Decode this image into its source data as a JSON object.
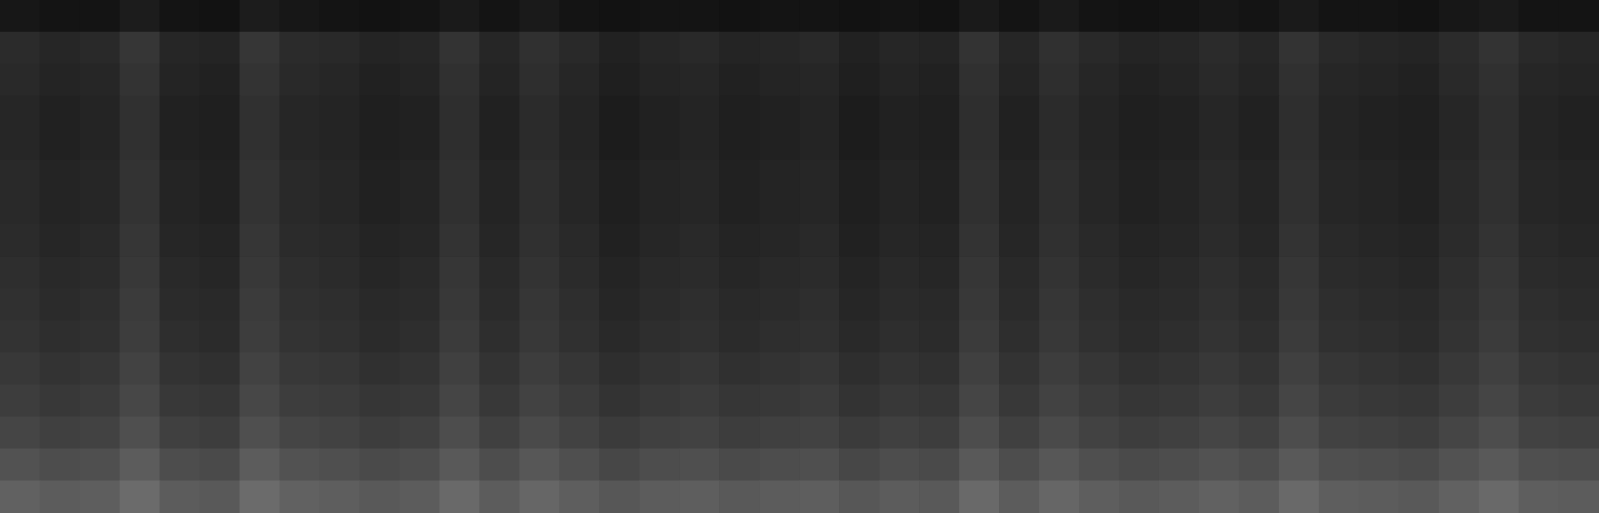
{
  "chart_data": {
    "type": "heatmap",
    "tick_labels": false,
    "grid": false,
    "color_range": [
      0,
      1
    ],
    "cells": [
      [
        0.09,
        0.08,
        0.08,
        0.11,
        0.08,
        0.07,
        0.11,
        0.09,
        0.08,
        0.07,
        0.08,
        0.1,
        0.08,
        0.1,
        0.08,
        0.07,
        0.08,
        0.08,
        0.07,
        0.08,
        0.08,
        0.07,
        0.08,
        0.07,
        0.1,
        0.08,
        0.1,
        0.08,
        0.07,
        0.08,
        0.09,
        0.08,
        0.1,
        0.08,
        0.08,
        0.07,
        0.09,
        0.1,
        0.08,
        0.08
      ],
      [
        0.17,
        0.15,
        0.16,
        0.21,
        0.15,
        0.14,
        0.21,
        0.17,
        0.16,
        0.14,
        0.15,
        0.2,
        0.15,
        0.19,
        0.16,
        0.13,
        0.15,
        0.16,
        0.14,
        0.15,
        0.16,
        0.13,
        0.15,
        0.14,
        0.2,
        0.15,
        0.19,
        0.16,
        0.14,
        0.15,
        0.17,
        0.15,
        0.2,
        0.16,
        0.15,
        0.14,
        0.17,
        0.2,
        0.16,
        0.15
      ],
      [
        0.16,
        0.14,
        0.15,
        0.2,
        0.14,
        0.13,
        0.2,
        0.16,
        0.15,
        0.13,
        0.14,
        0.19,
        0.14,
        0.18,
        0.15,
        0.12,
        0.14,
        0.15,
        0.13,
        0.14,
        0.15,
        0.12,
        0.14,
        0.13,
        0.19,
        0.14,
        0.18,
        0.15,
        0.13,
        0.14,
        0.16,
        0.14,
        0.19,
        0.15,
        0.14,
        0.13,
        0.16,
        0.19,
        0.15,
        0.14
      ],
      [
        0.15,
        0.13,
        0.14,
        0.19,
        0.13,
        0.12,
        0.19,
        0.15,
        0.14,
        0.12,
        0.13,
        0.18,
        0.13,
        0.17,
        0.14,
        0.11,
        0.13,
        0.14,
        0.12,
        0.13,
        0.14,
        0.11,
        0.13,
        0.12,
        0.18,
        0.13,
        0.17,
        0.14,
        0.12,
        0.13,
        0.15,
        0.13,
        0.18,
        0.14,
        0.13,
        0.12,
        0.15,
        0.18,
        0.14,
        0.13
      ],
      [
        0.15,
        0.13,
        0.14,
        0.19,
        0.13,
        0.12,
        0.19,
        0.15,
        0.14,
        0.12,
        0.13,
        0.18,
        0.13,
        0.17,
        0.14,
        0.11,
        0.13,
        0.14,
        0.12,
        0.13,
        0.14,
        0.11,
        0.13,
        0.12,
        0.18,
        0.13,
        0.17,
        0.14,
        0.12,
        0.13,
        0.15,
        0.13,
        0.18,
        0.14,
        0.13,
        0.12,
        0.15,
        0.18,
        0.14,
        0.13
      ],
      [
        0.16,
        0.14,
        0.15,
        0.2,
        0.14,
        0.13,
        0.2,
        0.16,
        0.15,
        0.13,
        0.14,
        0.19,
        0.14,
        0.18,
        0.15,
        0.12,
        0.14,
        0.15,
        0.13,
        0.14,
        0.15,
        0.12,
        0.14,
        0.13,
        0.19,
        0.14,
        0.18,
        0.15,
        0.13,
        0.14,
        0.16,
        0.14,
        0.19,
        0.15,
        0.14,
        0.13,
        0.16,
        0.19,
        0.15,
        0.14
      ],
      [
        0.16,
        0.14,
        0.15,
        0.2,
        0.14,
        0.13,
        0.2,
        0.16,
        0.15,
        0.13,
        0.14,
        0.19,
        0.14,
        0.18,
        0.15,
        0.12,
        0.14,
        0.15,
        0.13,
        0.14,
        0.15,
        0.12,
        0.14,
        0.13,
        0.19,
        0.14,
        0.18,
        0.15,
        0.13,
        0.14,
        0.16,
        0.14,
        0.19,
        0.15,
        0.14,
        0.13,
        0.16,
        0.19,
        0.15,
        0.14
      ],
      [
        0.17,
        0.15,
        0.16,
        0.21,
        0.15,
        0.14,
        0.21,
        0.17,
        0.16,
        0.14,
        0.15,
        0.2,
        0.15,
        0.19,
        0.16,
        0.13,
        0.15,
        0.16,
        0.14,
        0.15,
        0.16,
        0.13,
        0.15,
        0.14,
        0.2,
        0.15,
        0.19,
        0.16,
        0.14,
        0.15,
        0.17,
        0.15,
        0.2,
        0.16,
        0.15,
        0.14,
        0.17,
        0.2,
        0.16,
        0.15
      ],
      [
        0.18,
        0.16,
        0.17,
        0.22,
        0.16,
        0.15,
        0.22,
        0.18,
        0.17,
        0.15,
        0.16,
        0.21,
        0.16,
        0.2,
        0.17,
        0.14,
        0.16,
        0.17,
        0.15,
        0.16,
        0.17,
        0.14,
        0.16,
        0.15,
        0.21,
        0.16,
        0.2,
        0.17,
        0.15,
        0.16,
        0.18,
        0.16,
        0.21,
        0.17,
        0.16,
        0.15,
        0.18,
        0.21,
        0.17,
        0.16
      ],
      [
        0.19,
        0.17,
        0.18,
        0.23,
        0.17,
        0.16,
        0.23,
        0.19,
        0.18,
        0.16,
        0.17,
        0.22,
        0.17,
        0.21,
        0.18,
        0.15,
        0.17,
        0.18,
        0.16,
        0.17,
        0.18,
        0.15,
        0.17,
        0.16,
        0.22,
        0.17,
        0.21,
        0.18,
        0.16,
        0.17,
        0.19,
        0.17,
        0.22,
        0.18,
        0.17,
        0.16,
        0.19,
        0.22,
        0.18,
        0.17
      ],
      [
        0.2,
        0.18,
        0.19,
        0.24,
        0.18,
        0.17,
        0.24,
        0.2,
        0.19,
        0.17,
        0.18,
        0.23,
        0.18,
        0.22,
        0.19,
        0.16,
        0.18,
        0.19,
        0.17,
        0.18,
        0.19,
        0.16,
        0.18,
        0.17,
        0.23,
        0.18,
        0.22,
        0.19,
        0.17,
        0.18,
        0.2,
        0.18,
        0.23,
        0.19,
        0.18,
        0.17,
        0.2,
        0.23,
        0.19,
        0.18
      ],
      [
        0.22,
        0.2,
        0.21,
        0.26,
        0.2,
        0.19,
        0.26,
        0.22,
        0.21,
        0.19,
        0.2,
        0.25,
        0.2,
        0.24,
        0.21,
        0.18,
        0.2,
        0.21,
        0.19,
        0.2,
        0.21,
        0.18,
        0.2,
        0.19,
        0.25,
        0.2,
        0.24,
        0.21,
        0.19,
        0.2,
        0.22,
        0.2,
        0.25,
        0.21,
        0.2,
        0.19,
        0.22,
        0.25,
        0.21,
        0.2
      ],
      [
        0.24,
        0.22,
        0.23,
        0.28,
        0.22,
        0.21,
        0.28,
        0.24,
        0.23,
        0.21,
        0.22,
        0.27,
        0.22,
        0.26,
        0.23,
        0.2,
        0.22,
        0.23,
        0.21,
        0.22,
        0.23,
        0.2,
        0.22,
        0.21,
        0.27,
        0.22,
        0.26,
        0.23,
        0.21,
        0.22,
        0.24,
        0.22,
        0.27,
        0.23,
        0.22,
        0.21,
        0.24,
        0.27,
        0.23,
        0.22
      ],
      [
        0.27,
        0.25,
        0.26,
        0.31,
        0.25,
        0.24,
        0.31,
        0.27,
        0.26,
        0.24,
        0.25,
        0.3,
        0.25,
        0.29,
        0.26,
        0.23,
        0.25,
        0.26,
        0.24,
        0.25,
        0.26,
        0.23,
        0.25,
        0.24,
        0.3,
        0.25,
        0.29,
        0.26,
        0.24,
        0.25,
        0.27,
        0.25,
        0.3,
        0.26,
        0.25,
        0.24,
        0.27,
        0.3,
        0.26,
        0.25
      ],
      [
        0.32,
        0.3,
        0.31,
        0.36,
        0.3,
        0.29,
        0.36,
        0.32,
        0.31,
        0.29,
        0.3,
        0.35,
        0.3,
        0.34,
        0.31,
        0.28,
        0.3,
        0.31,
        0.29,
        0.3,
        0.31,
        0.28,
        0.3,
        0.29,
        0.35,
        0.3,
        0.34,
        0.31,
        0.29,
        0.3,
        0.32,
        0.3,
        0.35,
        0.31,
        0.3,
        0.29,
        0.32,
        0.35,
        0.31,
        0.3
      ],
      [
        0.38,
        0.36,
        0.37,
        0.42,
        0.36,
        0.35,
        0.42,
        0.38,
        0.37,
        0.35,
        0.36,
        0.41,
        0.36,
        0.4,
        0.37,
        0.34,
        0.36,
        0.37,
        0.35,
        0.36,
        0.37,
        0.34,
        0.36,
        0.35,
        0.41,
        0.36,
        0.4,
        0.37,
        0.35,
        0.36,
        0.38,
        0.36,
        0.41,
        0.37,
        0.36,
        0.35,
        0.38,
        0.41,
        0.37,
        0.36
      ]
    ]
  }
}
